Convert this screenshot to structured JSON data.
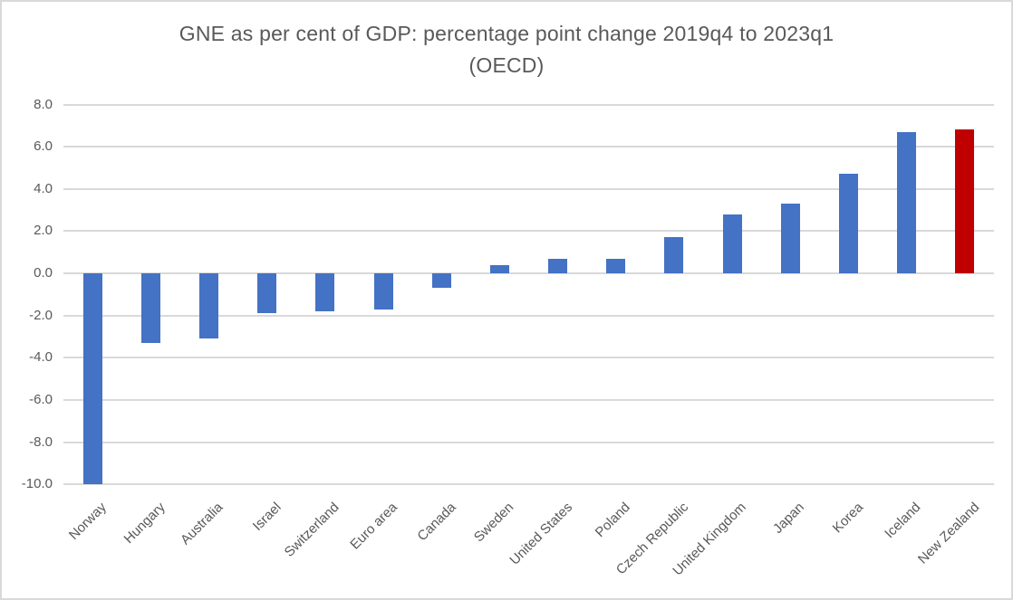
{
  "chart": {
    "title_line1": "GNE as per cent of GDP: percentage point change 2019q4 to 2023q1",
    "title_line2": "(OECD)"
  },
  "chart_data": {
    "type": "bar",
    "title": "GNE as per cent of GDP: percentage point change 2019q4 to 2023q1 (OECD)",
    "categories": [
      "Norway",
      "Hungary",
      "Australia",
      "Israel",
      "Switzerland",
      "Euro area",
      "Canada",
      "Sweden",
      "United States",
      "Poland",
      "Czech Republic",
      "United Kingdom",
      "Japan",
      "Korea",
      "Iceland",
      "New Zealand"
    ],
    "values": [
      -10.0,
      -3.3,
      -3.1,
      -1.9,
      -1.8,
      -1.7,
      -0.7,
      0.4,
      0.7,
      0.7,
      1.7,
      2.8,
      3.3,
      4.7,
      6.7,
      6.8
    ],
    "bar_colors": [
      "#4472C4",
      "#4472C4",
      "#4472C4",
      "#4472C4",
      "#4472C4",
      "#4472C4",
      "#4472C4",
      "#4472C4",
      "#4472C4",
      "#4472C4",
      "#4472C4",
      "#4472C4",
      "#4472C4",
      "#4472C4",
      "#4472C4",
      "#C00000"
    ],
    "highlight_category": "New Zealand",
    "xlabel": "",
    "ylabel": "",
    "ylim": [
      -10,
      8
    ],
    "ytick_step": 2,
    "ytick_labels": [
      "8.0",
      "6.0",
      "4.0",
      "2.0",
      "0.0",
      "-2.0",
      "-4.0",
      "-6.0",
      "-8.0",
      "-10.0"
    ],
    "grid": true,
    "legend": "none",
    "styles": {
      "bar_default": "#4472C4",
      "bar_highlight": "#C00000",
      "gridline_color": "#D9D9D9",
      "axis_text_color": "#595959",
      "title_text_color": "#595959",
      "frame_border_color": "#D9D9D9",
      "background": "#FFFFFF"
    }
  }
}
